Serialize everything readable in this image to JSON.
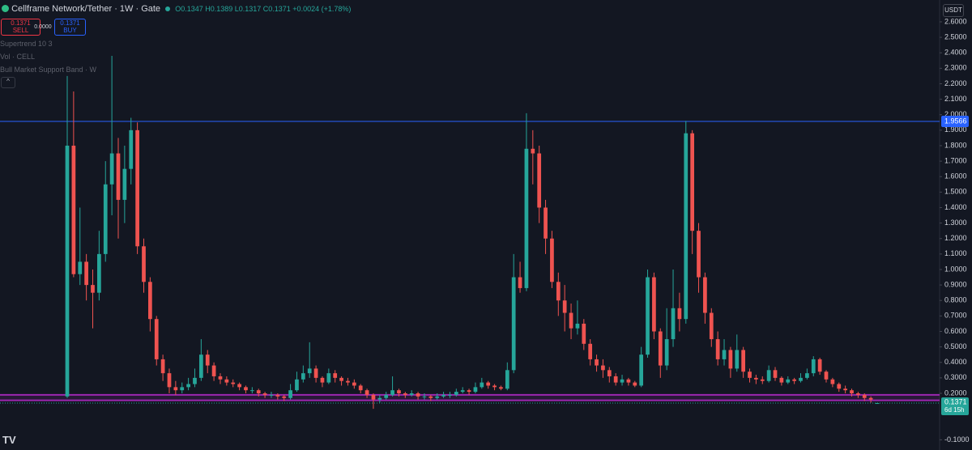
{
  "header": {
    "title": "Cellframe Network/Tether · 1W · Gate",
    "ohlc": "O0.1347 H0.1389 L0.1317 C0.1371 +0.0024 (+1.78%)",
    "sell_price": "0.1371",
    "sell": "SELL",
    "spread": "0.0000",
    "buy_price": "0.1371",
    "buy": "BUY",
    "currency": "USDT"
  },
  "indicators": [
    "Supertrend 10 3",
    "Vol · CELL",
    "Bull Market Support Band · W"
  ],
  "chart_data": {
    "type": "candlestick",
    "up_color": "#26a69a",
    "down_color": "#ef5350",
    "grid": false,
    "ylim": [
      -0.166,
      2.741
    ],
    "yticks": [
      {
        "value": 2.6,
        "label": "2.6000"
      },
      {
        "value": 2.5,
        "label": "2.5000"
      },
      {
        "value": 2.4,
        "label": "2.4000"
      },
      {
        "value": 2.3,
        "label": "2.3000"
      },
      {
        "value": 2.2,
        "label": "2.2000"
      },
      {
        "value": 2.1,
        "label": "2.1000"
      },
      {
        "value": 2.0,
        "label": "2.0000"
      },
      {
        "value": 1.9,
        "label": "1.9000"
      },
      {
        "value": 1.8,
        "label": "1.8000"
      },
      {
        "value": 1.7,
        "label": "1.7000"
      },
      {
        "value": 1.6,
        "label": "1.6000"
      },
      {
        "value": 1.5,
        "label": "1.5000"
      },
      {
        "value": 1.4,
        "label": "1.4000"
      },
      {
        "value": 1.3,
        "label": "1.3000"
      },
      {
        "value": 1.2,
        "label": "1.2000"
      },
      {
        "value": 1.1,
        "label": "1.1000"
      },
      {
        "value": 1.0,
        "label": "1.0000"
      },
      {
        "value": 0.9,
        "label": "0.9000"
      },
      {
        "value": 0.8,
        "label": "0.8000"
      },
      {
        "value": 0.7,
        "label": "0.7000"
      },
      {
        "value": 0.6,
        "label": "0.6000"
      },
      {
        "value": 0.5,
        "label": "0.5000"
      },
      {
        "value": 0.4,
        "label": "0.4000"
      },
      {
        "value": 0.3,
        "label": "0.3000"
      },
      {
        "value": 0.2,
        "label": "0.2000"
      },
      {
        "value": -0.1,
        "label": "-0.1000"
      }
    ],
    "open": [
      0.18,
      1.8,
      0.97,
      1.05,
      0.9,
      0.85,
      1.1,
      1.55,
      1.75,
      1.45,
      1.65,
      1.9,
      1.15,
      0.92,
      0.68,
      0.42,
      0.33,
      0.24,
      0.22,
      0.24,
      0.26,
      0.3,
      0.45,
      0.38,
      0.31,
      0.29,
      0.27,
      0.26,
      0.24,
      0.22,
      0.22,
      0.2,
      0.19,
      0.19,
      0.18,
      0.17,
      0.22,
      0.29,
      0.33,
      0.36,
      0.3,
      0.27,
      0.33,
      0.3,
      0.28,
      0.27,
      0.25,
      0.22,
      0.19,
      0.16,
      0.17,
      0.19,
      0.22,
      0.2,
      0.19,
      0.2,
      0.18,
      0.18,
      0.17,
      0.18,
      0.19,
      0.19,
      0.21,
      0.22,
      0.21,
      0.24,
      0.27,
      0.25,
      0.24,
      0.23,
      0.35,
      0.95,
      0.88,
      1.78,
      1.75,
      1.4,
      1.2,
      0.92,
      0.8,
      0.72,
      0.62,
      0.65,
      0.52,
      0.42,
      0.38,
      0.35,
      0.31,
      0.27,
      0.29,
      0.27,
      0.25,
      0.45,
      0.95,
      0.6,
      0.38,
      0.55,
      0.75,
      0.68,
      1.88,
      1.25,
      0.95,
      0.72,
      0.55,
      0.42,
      0.48,
      0.36,
      0.48,
      0.34,
      0.3,
      0.29,
      0.28,
      0.35,
      0.3,
      0.27,
      0.29,
      0.28,
      0.3,
      0.33,
      0.42,
      0.34,
      0.29,
      0.26,
      0.23,
      0.22,
      0.2,
      0.19,
      0.17,
      0.1347
    ],
    "close": [
      1.8,
      0.97,
      1.05,
      0.9,
      0.85,
      1.1,
      1.55,
      1.75,
      1.45,
      1.65,
      1.9,
      1.15,
      0.92,
      0.68,
      0.42,
      0.33,
      0.24,
      0.22,
      0.24,
      0.26,
      0.3,
      0.45,
      0.38,
      0.31,
      0.29,
      0.27,
      0.26,
      0.24,
      0.22,
      0.22,
      0.2,
      0.19,
      0.19,
      0.18,
      0.17,
      0.22,
      0.29,
      0.33,
      0.36,
      0.3,
      0.27,
      0.33,
      0.3,
      0.28,
      0.27,
      0.25,
      0.22,
      0.19,
      0.16,
      0.17,
      0.19,
      0.22,
      0.2,
      0.19,
      0.2,
      0.18,
      0.18,
      0.17,
      0.18,
      0.19,
      0.19,
      0.21,
      0.22,
      0.21,
      0.24,
      0.27,
      0.25,
      0.24,
      0.23,
      0.35,
      0.95,
      0.88,
      1.78,
      1.75,
      1.4,
      1.2,
      0.92,
      0.8,
      0.72,
      0.62,
      0.65,
      0.52,
      0.42,
      0.38,
      0.35,
      0.31,
      0.27,
      0.29,
      0.27,
      0.25,
      0.45,
      0.95,
      0.6,
      0.38,
      0.55,
      0.75,
      0.68,
      1.88,
      1.25,
      0.95,
      0.72,
      0.55,
      0.42,
      0.48,
      0.36,
      0.48,
      0.34,
      0.3,
      0.29,
      0.28,
      0.35,
      0.3,
      0.27,
      0.29,
      0.28,
      0.3,
      0.33,
      0.42,
      0.34,
      0.29,
      0.26,
      0.23,
      0.22,
      0.2,
      0.19,
      0.17,
      0.16,
      0.1371
    ],
    "high": [
      2.25,
      2.15,
      1.4,
      1.1,
      1.0,
      1.25,
      1.7,
      2.38,
      1.85,
      1.8,
      1.98,
      1.95,
      1.2,
      0.95,
      0.7,
      0.45,
      0.36,
      0.28,
      0.27,
      0.3,
      0.36,
      0.55,
      0.48,
      0.4,
      0.33,
      0.31,
      0.29,
      0.27,
      0.25,
      0.24,
      0.23,
      0.21,
      0.21,
      0.2,
      0.19,
      0.26,
      0.34,
      0.38,
      0.53,
      0.38,
      0.31,
      0.36,
      0.35,
      0.31,
      0.3,
      0.29,
      0.26,
      0.23,
      0.2,
      0.19,
      0.21,
      0.31,
      0.23,
      0.21,
      0.22,
      0.21,
      0.2,
      0.19,
      0.2,
      0.21,
      0.21,
      0.23,
      0.24,
      0.23,
      0.27,
      0.3,
      0.28,
      0.26,
      0.25,
      0.4,
      1.1,
      1.05,
      2.01,
      1.9,
      1.8,
      1.45,
      1.25,
      0.98,
      0.9,
      0.78,
      0.8,
      0.68,
      0.55,
      0.45,
      0.42,
      0.37,
      0.33,
      0.32,
      0.3,
      0.28,
      0.5,
      1.0,
      0.98,
      0.62,
      0.75,
      1.0,
      0.85,
      1.96,
      1.9,
      1.3,
      0.98,
      0.75,
      0.6,
      0.55,
      0.5,
      0.58,
      0.5,
      0.36,
      0.32,
      0.31,
      0.38,
      0.37,
      0.31,
      0.31,
      0.3,
      0.33,
      0.36,
      0.44,
      0.43,
      0.35,
      0.3,
      0.27,
      0.25,
      0.23,
      0.21,
      0.2,
      0.18,
      0.1389
    ],
    "low": [
      0.17,
      0.95,
      0.9,
      0.8,
      0.62,
      0.8,
      1.05,
      1.35,
      1.2,
      1.3,
      1.55,
      1.1,
      0.85,
      0.6,
      0.38,
      0.28,
      0.2,
      0.19,
      0.2,
      0.22,
      0.24,
      0.28,
      0.33,
      0.28,
      0.26,
      0.25,
      0.24,
      0.22,
      0.2,
      0.2,
      0.18,
      0.17,
      0.17,
      0.16,
      0.15,
      0.16,
      0.21,
      0.27,
      0.3,
      0.27,
      0.24,
      0.26,
      0.27,
      0.25,
      0.25,
      0.23,
      0.2,
      0.17,
      0.1,
      0.14,
      0.16,
      0.18,
      0.18,
      0.17,
      0.18,
      0.16,
      0.16,
      0.15,
      0.16,
      0.17,
      0.17,
      0.18,
      0.2,
      0.19,
      0.2,
      0.23,
      0.23,
      0.22,
      0.22,
      0.22,
      0.33,
      0.85,
      0.86,
      1.55,
      1.3,
      1.1,
      0.88,
      0.7,
      0.6,
      0.55,
      0.58,
      0.48,
      0.38,
      0.34,
      0.3,
      0.27,
      0.25,
      0.25,
      0.25,
      0.24,
      0.24,
      0.43,
      0.55,
      0.3,
      0.35,
      0.5,
      0.6,
      0.65,
      1.1,
      0.85,
      0.65,
      0.5,
      0.38,
      0.38,
      0.3,
      0.34,
      0.3,
      0.27,
      0.26,
      0.26,
      0.27,
      0.28,
      0.25,
      0.26,
      0.26,
      0.27,
      0.29,
      0.31,
      0.32,
      0.27,
      0.24,
      0.21,
      0.2,
      0.18,
      0.17,
      0.15,
      0.14,
      0.1317
    ],
    "hline": {
      "value": 1.9566,
      "label": "1.9566",
      "color": "#2962ff"
    },
    "band": {
      "values": [
        0.155,
        0.19
      ],
      "color": "#9c27b0"
    },
    "last_price": {
      "value": 0.1371,
      "label": "0.1371",
      "countdown": "6d 15h",
      "color": "#26a69a"
    }
  }
}
